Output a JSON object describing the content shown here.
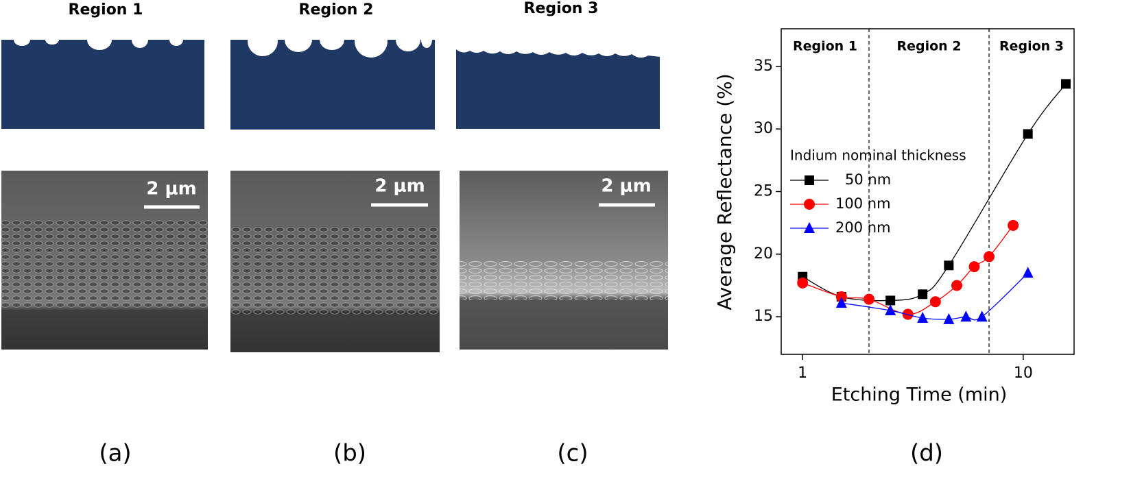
{
  "panels": [
    {
      "title": "Region 1",
      "scale_bar": "2 μm",
      "label": "(a)"
    },
    {
      "title": "Region 2",
      "scale_bar": "2 μm",
      "label": "(b)"
    },
    {
      "title": "Region 3",
      "scale_bar": "2 μm",
      "label": "(c)"
    }
  ],
  "chart_panel_label": "(d)",
  "chart_data": {
    "type": "line",
    "x_scale": "log",
    "xlabel": "Etching Time (min)",
    "ylabel": "Average Reflectance (%)",
    "xlim": [
      0.8,
      17
    ],
    "ylim": [
      12,
      38
    ],
    "xticks": [
      1,
      10
    ],
    "yticks": [
      15,
      20,
      25,
      30,
      35
    ],
    "regions": [
      "Region 1",
      "Region 2",
      "Region 3"
    ],
    "region_boundaries": [
      2,
      7
    ],
    "legend_title": "Indium nominal thickness",
    "legend": "left",
    "series": [
      {
        "name": "50 nm",
        "color": "#000000",
        "marker": "square",
        "x": [
          1,
          1.5,
          2.5,
          3.5,
          4.6,
          10.5,
          15.6
        ],
        "values": [
          18.2,
          16.6,
          16.3,
          16.8,
          19.1,
          29.6,
          33.6
        ]
      },
      {
        "name": "100 nm",
        "color": "#ff0000",
        "marker": "circle",
        "x": [
          1,
          1.5,
          2,
          3,
          4,
          5,
          6,
          7,
          9
        ],
        "values": [
          17.7,
          16.6,
          16.4,
          15.2,
          16.2,
          17.5,
          19.0,
          19.8,
          22.3
        ]
      },
      {
        "name": "200 nm",
        "color": "#0000ff",
        "marker": "triangle",
        "x": [
          1.5,
          2.5,
          3.5,
          4.6,
          5.5,
          6.5,
          10.5
        ],
        "values": [
          16.1,
          15.5,
          14.9,
          14.8,
          15.0,
          15.0,
          18.5
        ]
      }
    ]
  }
}
